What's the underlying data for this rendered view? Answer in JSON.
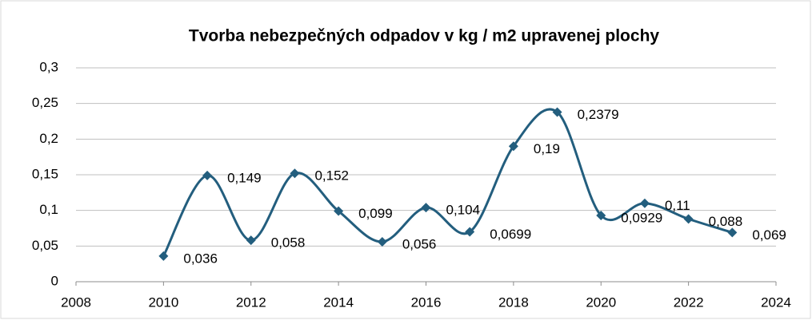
{
  "chart_data": {
    "type": "scatter",
    "title": "Tvorba nebezpečných odpadov v kg / m2 upravenej plochy",
    "x": [
      2010,
      2011,
      2012,
      2013,
      2014,
      2015,
      2016,
      2017,
      2018,
      2019,
      2020,
      2021,
      2022,
      2023
    ],
    "series": [
      {
        "name": "Tvorba",
        "color": "#235e7e",
        "values": [
          0.036,
          0.149,
          0.058,
          0.152,
          0.099,
          0.056,
          0.104,
          0.0699,
          0.19,
          0.2379,
          0.0929,
          0.11,
          0.088,
          0.069
        ],
        "value_labels": [
          "0,036",
          "0,149",
          "0,058",
          "0,152",
          "0,099",
          "0,056",
          "0,104",
          "0,0699",
          "0,19",
          "0,2379",
          "0,0929",
          "0,11",
          "0,088",
          "0,069"
        ]
      }
    ],
    "xlim": [
      2008,
      2024
    ],
    "xticks": [
      2008,
      2010,
      2012,
      2014,
      2016,
      2018,
      2020,
      2022,
      2024
    ],
    "ylim": [
      0,
      0.3
    ],
    "yticks": [
      0,
      {
        "value": 0.05,
        "label": "0,05"
      },
      {
        "value": 0.1,
        "label": "0,1"
      },
      {
        "value": 0.15,
        "label": "0,15"
      },
      {
        "value": 0.2,
        "label": "0,2"
      },
      {
        "value": 0.25,
        "label": "0,25"
      },
      {
        "value": 0.3,
        "label": "0,3"
      }
    ],
    "grid": true,
    "smooth": true
  }
}
